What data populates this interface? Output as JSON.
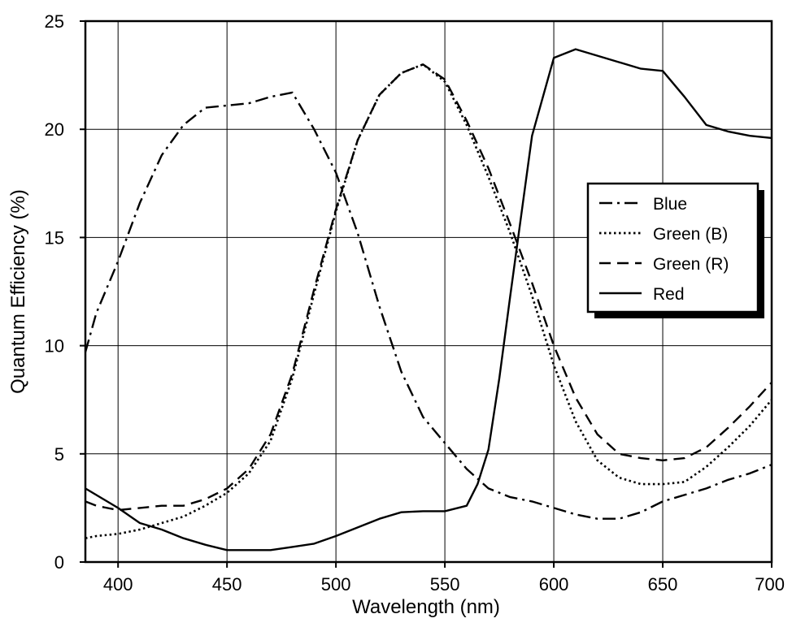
{
  "chart_data": {
    "type": "line",
    "title": "",
    "xlabel": "Wavelength (nm)",
    "ylabel": "Quantum Efficiency  (%)",
    "xlim": [
      385,
      700
    ],
    "ylim": [
      0,
      25
    ],
    "xticks": [
      400,
      450,
      500,
      550,
      600,
      650,
      700
    ],
    "yticks": [
      0,
      5,
      10,
      15,
      20,
      25
    ],
    "grid": true,
    "legend_position": "right",
    "series": [
      {
        "name": "Blue",
        "style": "dashdot",
        "color": "#000000",
        "x": [
          385,
          390,
          400,
          410,
          420,
          430,
          440,
          450,
          460,
          470,
          480,
          490,
          500,
          510,
          520,
          530,
          540,
          550,
          560,
          570,
          580,
          590,
          600,
          610,
          620,
          630,
          640,
          650,
          660,
          670,
          680,
          690,
          700
        ],
        "y": [
          9.7,
          11.5,
          13.9,
          16.6,
          18.8,
          20.2,
          21.0,
          21.1,
          21.2,
          21.5,
          21.7,
          20.0,
          18.0,
          15.2,
          11.8,
          8.8,
          6.7,
          5.5,
          4.3,
          3.4,
          3.0,
          2.8,
          2.5,
          2.2,
          2.0,
          2.0,
          2.3,
          2.8,
          3.1,
          3.4,
          3.8,
          4.1,
          4.5
        ]
      },
      {
        "name": "Green (B)",
        "style": "dotted",
        "color": "#000000",
        "x": [
          385,
          390,
          400,
          410,
          420,
          430,
          440,
          450,
          460,
          470,
          480,
          490,
          500,
          510,
          520,
          530,
          540,
          550,
          560,
          570,
          580,
          590,
          600,
          610,
          620,
          630,
          640,
          650,
          660,
          670,
          680,
          690,
          700
        ],
        "y": [
          1.1,
          1.2,
          1.3,
          1.5,
          1.8,
          2.1,
          2.6,
          3.2,
          4.1,
          5.6,
          8.5,
          12.4,
          16.2,
          19.5,
          21.6,
          22.6,
          23.0,
          22.2,
          20.2,
          17.8,
          15.2,
          12.3,
          9.1,
          6.5,
          4.7,
          3.9,
          3.6,
          3.6,
          3.7,
          4.4,
          5.3,
          6.3,
          7.5
        ]
      },
      {
        "name": "Green (R)",
        "style": "dashed",
        "color": "#000000",
        "x": [
          385,
          390,
          400,
          410,
          420,
          430,
          440,
          450,
          460,
          470,
          480,
          490,
          500,
          510,
          520,
          530,
          540,
          550,
          560,
          570,
          580,
          590,
          600,
          610,
          620,
          630,
          640,
          650,
          660,
          670,
          680,
          690,
          700
        ],
        "y": [
          2.8,
          2.6,
          2.4,
          2.5,
          2.6,
          2.6,
          2.9,
          3.4,
          4.3,
          5.9,
          8.7,
          12.6,
          16.3,
          19.5,
          21.6,
          22.6,
          23.0,
          22.3,
          20.4,
          18.2,
          15.6,
          12.9,
          10.0,
          7.6,
          5.9,
          5.0,
          4.8,
          4.7,
          4.8,
          5.3,
          6.2,
          7.2,
          8.3
        ]
      },
      {
        "name": "Red",
        "style": "solid",
        "color": "#000000",
        "x": [
          385,
          390,
          400,
          410,
          420,
          430,
          440,
          450,
          460,
          470,
          480,
          490,
          500,
          510,
          520,
          530,
          540,
          550,
          560,
          565,
          570,
          575,
          580,
          590,
          600,
          610,
          620,
          630,
          640,
          650,
          660,
          670,
          680,
          690,
          700
        ],
        "y": [
          3.4,
          3.1,
          2.5,
          1.8,
          1.5,
          1.1,
          0.8,
          0.55,
          0.55,
          0.55,
          0.7,
          0.85,
          1.2,
          1.6,
          2.0,
          2.3,
          2.35,
          2.35,
          2.6,
          3.6,
          5.2,
          8.5,
          12.3,
          19.7,
          23.3,
          23.7,
          23.4,
          23.1,
          22.8,
          22.7,
          21.5,
          20.2,
          19.9,
          19.7,
          19.6
        ]
      }
    ]
  }
}
